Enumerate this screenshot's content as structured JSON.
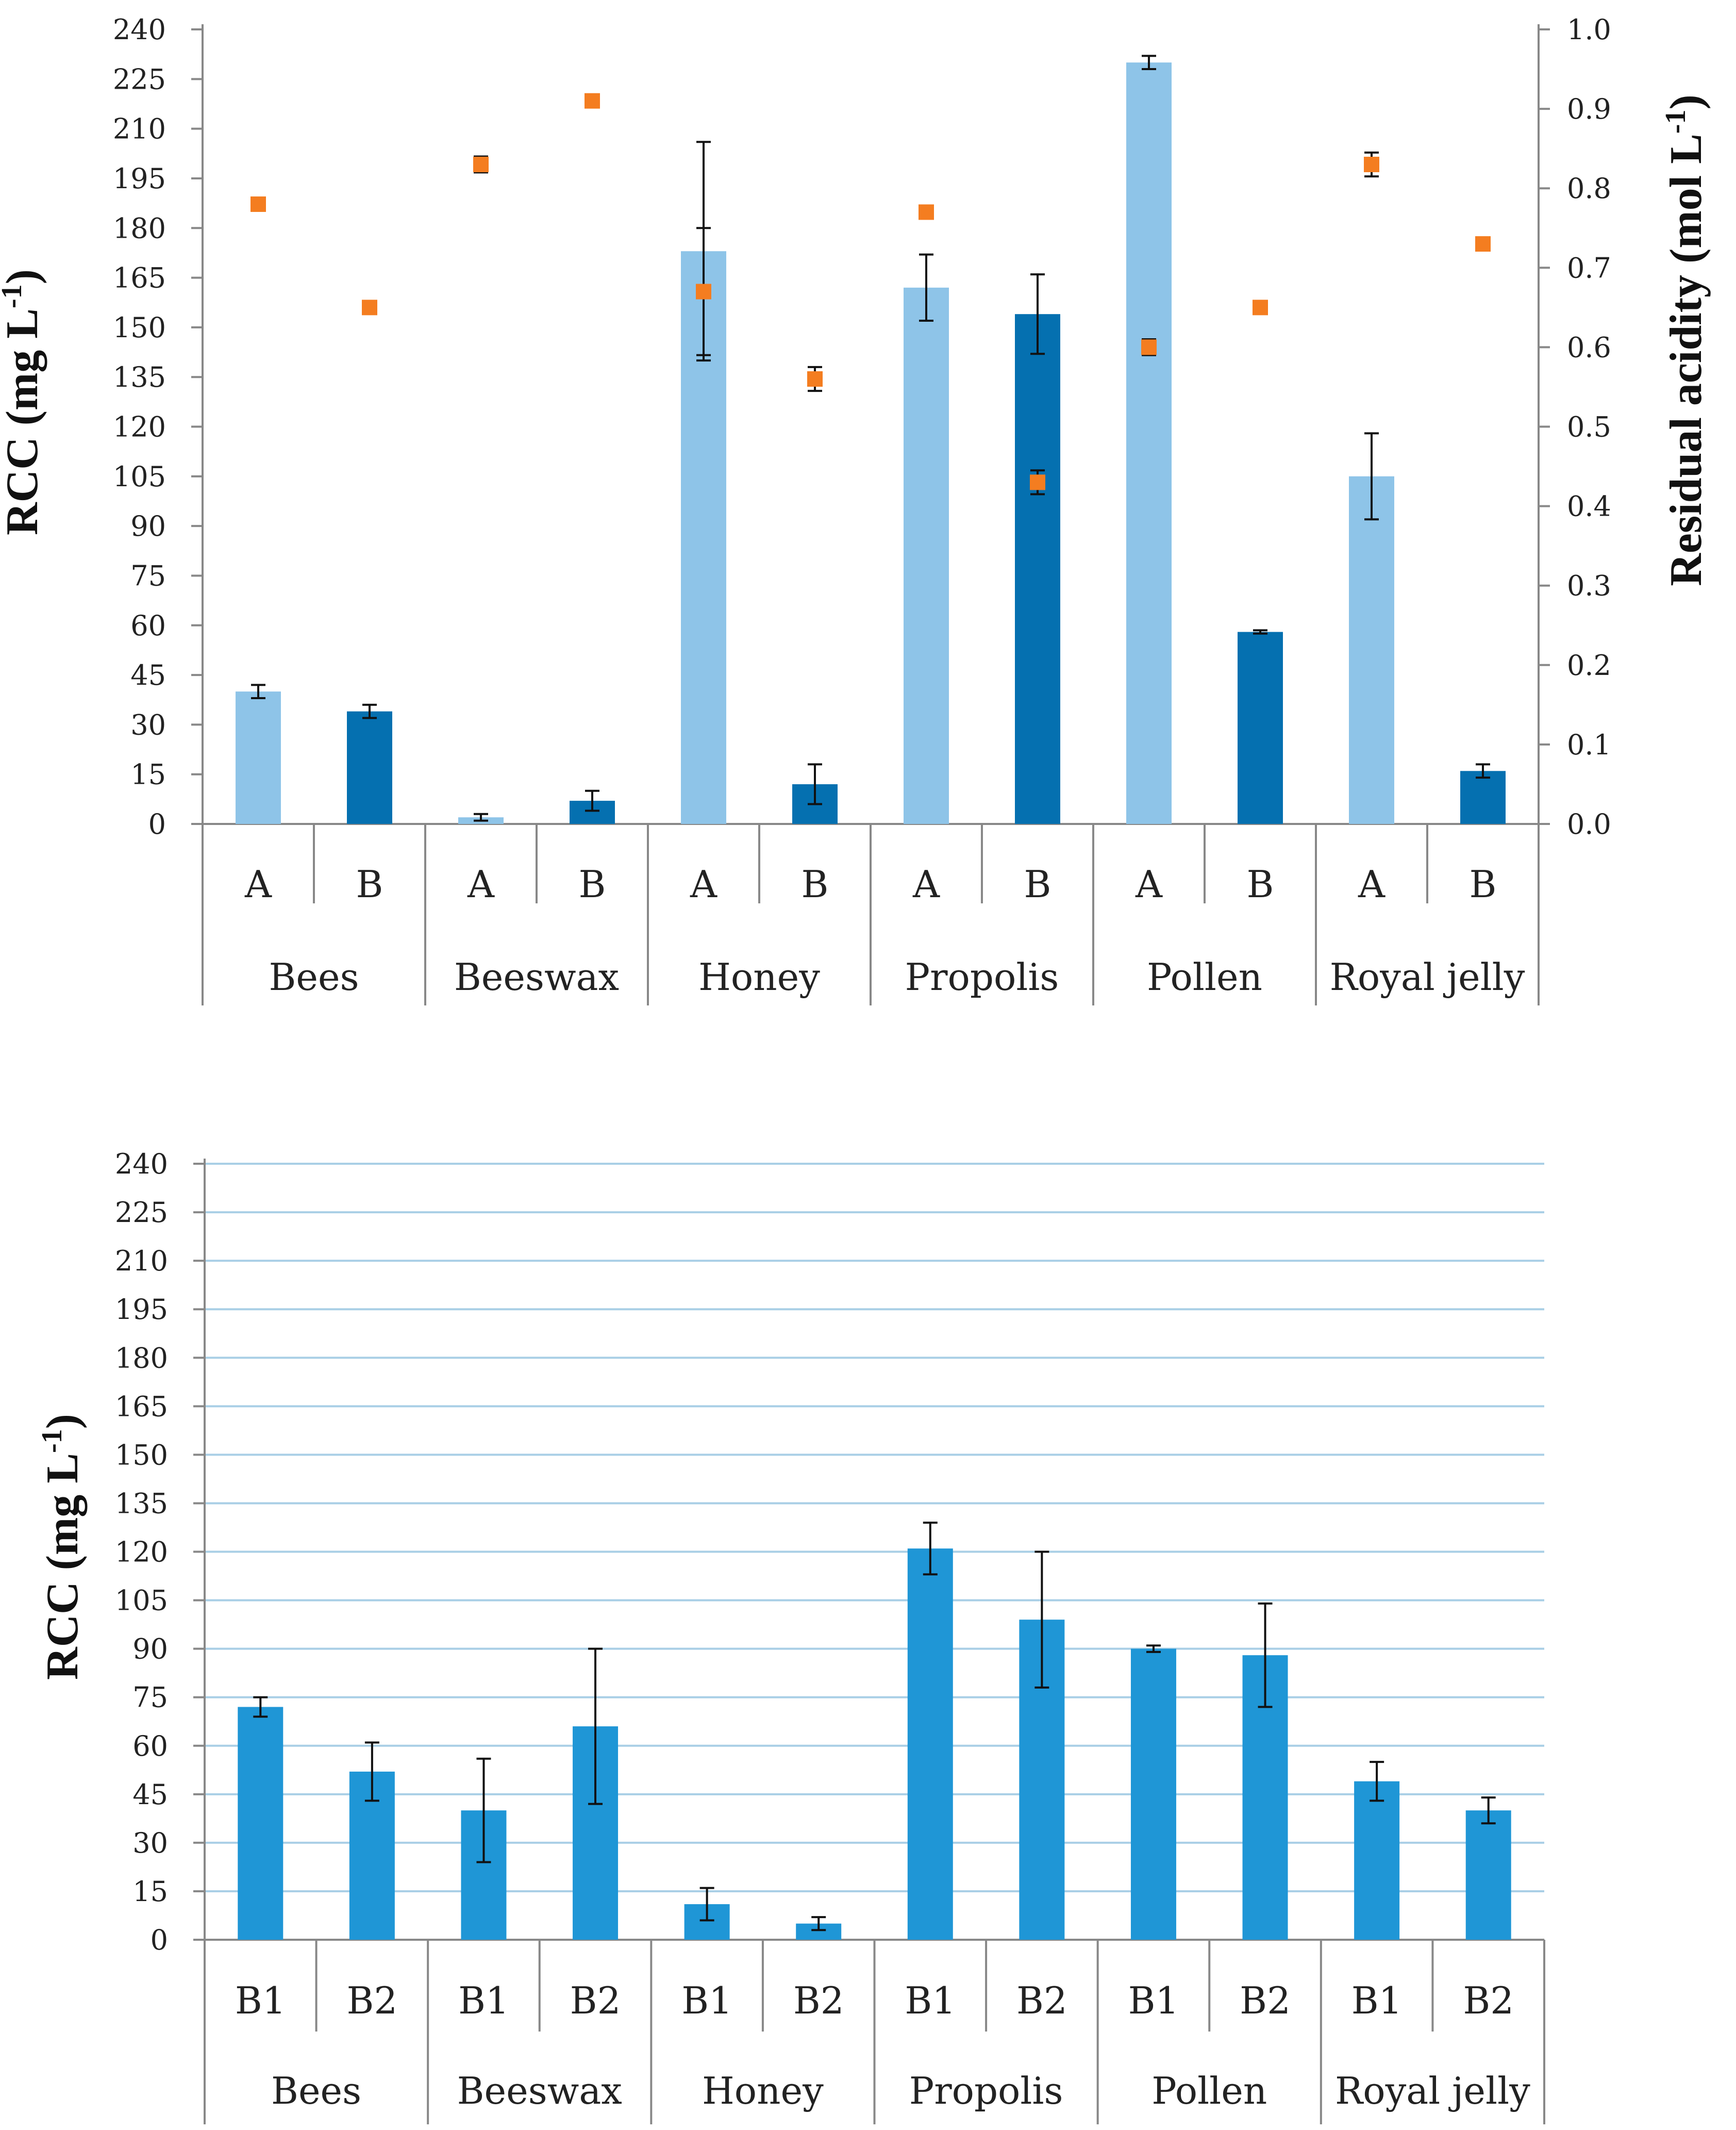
{
  "charts": [
    {
      "type": "bar+scatter",
      "categories": [
        "A",
        "B",
        "A",
        "B",
        "A",
        "B",
        "A",
        "B",
        "A",
        "B",
        "A",
        "B"
      ],
      "groups": [
        "Bees",
        "Beeswax",
        "Honey",
        "Propolis",
        "Pollen",
        "Royal jelly"
      ],
      "ylabel_left": "RCC (mg L",
      "ylabel_left_sup": "-1",
      "ylabel_left_end": ")",
      "ylabel_right": "Residual acidity (mol L",
      "ylabel_right_sup": "-1",
      "ylabel_right_end": ")",
      "ylim_left": [
        0,
        240
      ],
      "ylim_right": [
        0,
        1.0
      ],
      "yticks_left": [
        "0",
        "15",
        "30",
        "45",
        "60",
        "75",
        "90",
        "105",
        "120",
        "135",
        "150",
        "165",
        "180",
        "195",
        "210",
        "225",
        "240"
      ],
      "yticks_right": [
        "0.0",
        "0.1",
        "0.2",
        "0.3",
        "0.4",
        "0.5",
        "0.6",
        "0.7",
        "0.8",
        "0.9",
        "1.0"
      ],
      "grid": true,
      "bar_values": [
        40,
        34,
        2,
        7,
        173,
        12,
        162,
        154,
        230,
        58,
        105,
        16
      ],
      "bar_errors": [
        2,
        2,
        1,
        3,
        33,
        6,
        10,
        12,
        2,
        0.5,
        13,
        2
      ],
      "bar_colors": [
        "#8ec4e8",
        "#0570b0",
        "#8ec4e8",
        "#0570b0",
        "#8ec4e8",
        "#0570b0",
        "#8ec4e8",
        "#0570b0",
        "#8ec4e8",
        "#0570b0",
        "#8ec4e8",
        "#0570b0"
      ],
      "marker_values": [
        0.78,
        0.65,
        0.83,
        0.91,
        0.67,
        0.56,
        0.77,
        0.43,
        0.6,
        0.65,
        0.83,
        0.73
      ],
      "marker_errors": [
        0,
        0,
        0.01,
        0,
        0.08,
        0.015,
        0,
        0.015,
        0.01,
        0,
        0.015,
        0
      ],
      "marker_color": "#f47d20"
    },
    {
      "type": "bar",
      "categories": [
        "B1",
        "B2",
        "B1",
        "B2",
        "B1",
        "B2",
        "B1",
        "B2",
        "B1",
        "B2",
        "B1",
        "B2"
      ],
      "groups": [
        "Bees",
        "Beeswax",
        "Honey",
        "Propolis",
        "Pollen",
        "Royal jelly"
      ],
      "ylabel_left": "RCC (mg L",
      "ylabel_left_sup": "-1",
      "ylabel_left_end": ")",
      "ylim_left": [
        0,
        240
      ],
      "yticks_left": [
        "0",
        "15",
        "30",
        "45",
        "60",
        "75",
        "90",
        "105",
        "120",
        "135",
        "150",
        "165",
        "180",
        "195",
        "210",
        "225",
        "240"
      ],
      "grid": true,
      "bar_values": [
        72,
        52,
        40,
        66,
        11,
        5,
        121,
        99,
        90,
        88,
        49,
        40
      ],
      "bar_errors": [
        3,
        9,
        16,
        24,
        5,
        2,
        8,
        21,
        1,
        16,
        6,
        4
      ],
      "bar_colors": [
        "#1f96d6",
        "#1f96d6",
        "#1f96d6",
        "#1f96d6",
        "#1f96d6",
        "#1f96d6",
        "#1f96d6",
        "#1f96d6",
        "#1f96d6",
        "#1f96d6",
        "#1f96d6",
        "#1f96d6"
      ]
    }
  ]
}
